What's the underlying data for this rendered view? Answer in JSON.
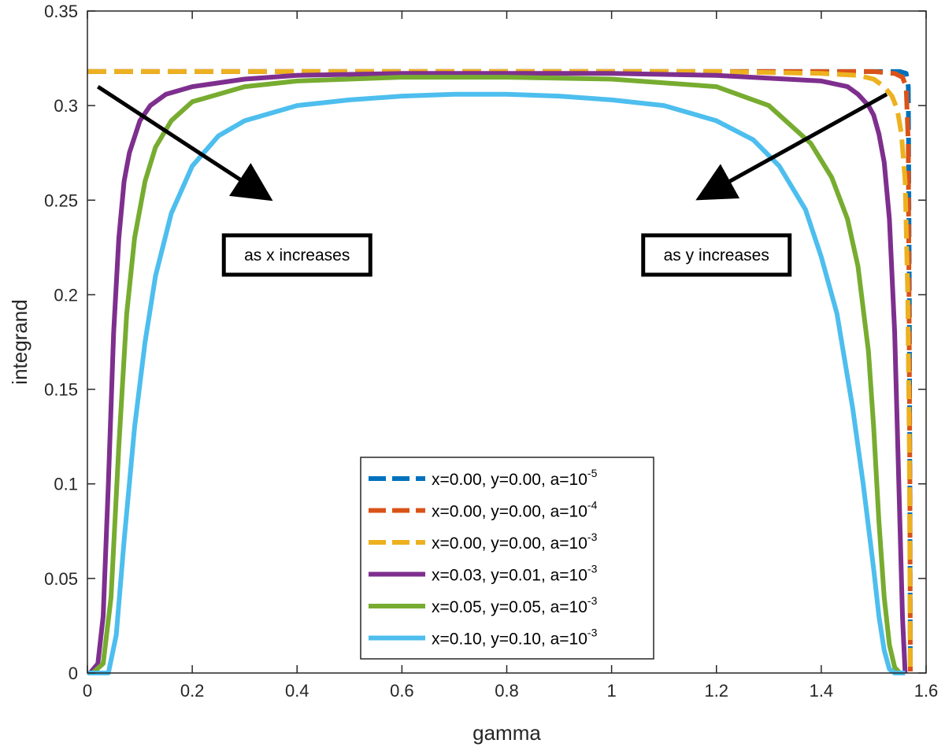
{
  "chart_data": {
    "type": "line",
    "title": "",
    "xlabel": "gamma",
    "ylabel": "integrand",
    "xlim": [
      0,
      1.6
    ],
    "ylim": [
      0,
      0.35
    ],
    "xticks": [
      "0",
      "0.2",
      "0.4",
      "0.6",
      "0.8",
      "1",
      "1.2",
      "1.4",
      "1.6"
    ],
    "yticks": [
      "0",
      "0.05",
      "0.1",
      "0.15",
      "0.2",
      "0.25",
      "0.3",
      "0.35"
    ],
    "grid": false,
    "legend_position": "bottom-center",
    "series": [
      {
        "name": "x=0.00, y=0.00, a=10",
        "exp": "-5",
        "color": "#0072BD",
        "style": "dashed",
        "x": [
          0,
          0.2,
          0.4,
          0.6,
          0.8,
          1.0,
          1.2,
          1.4,
          1.5,
          1.55,
          1.562,
          1.566,
          1.568,
          1.57
        ],
        "y": [
          0.318,
          0.318,
          0.318,
          0.318,
          0.318,
          0.318,
          0.318,
          0.318,
          0.318,
          0.318,
          0.317,
          0.31,
          0.2,
          0
        ]
      },
      {
        "name": "x=0.00, y=0.00, a=10",
        "exp": "-4",
        "color": "#D95319",
        "style": "dashed",
        "x": [
          0,
          0.2,
          0.4,
          0.6,
          0.8,
          1.0,
          1.2,
          1.4,
          1.5,
          1.54,
          1.555,
          1.562,
          1.566,
          1.569,
          1.57
        ],
        "y": [
          0.318,
          0.318,
          0.318,
          0.318,
          0.318,
          0.318,
          0.318,
          0.318,
          0.318,
          0.317,
          0.315,
          0.31,
          0.28,
          0.1,
          0
        ]
      },
      {
        "name": "x=0.00, y=0.00, a=10",
        "exp": "-3",
        "color": "#EDB120",
        "style": "dashed",
        "x": [
          0,
          0.2,
          0.4,
          0.6,
          0.8,
          1.0,
          1.2,
          1.4,
          1.47,
          1.5,
          1.52,
          1.535,
          1.545,
          1.553,
          1.56,
          1.565,
          1.568,
          1.57
        ],
        "y": [
          0.318,
          0.318,
          0.318,
          0.318,
          0.318,
          0.318,
          0.318,
          0.317,
          0.316,
          0.314,
          0.31,
          0.305,
          0.298,
          0.285,
          0.26,
          0.2,
          0.12,
          0
        ]
      },
      {
        "name": "x=0.03, y=0.01, a=10",
        "exp": "-3",
        "color": "#7E2F8E",
        "style": "solid",
        "x": [
          0.005,
          0.02,
          0.03,
          0.04,
          0.05,
          0.06,
          0.07,
          0.08,
          0.1,
          0.12,
          0.15,
          0.2,
          0.3,
          0.4,
          0.6,
          0.8,
          1.0,
          1.2,
          1.4,
          1.45,
          1.47,
          1.49,
          1.5,
          1.51,
          1.52,
          1.53,
          1.54,
          1.55,
          1.555,
          1.56
        ],
        "y": [
          0,
          0.005,
          0.03,
          0.1,
          0.18,
          0.23,
          0.26,
          0.275,
          0.292,
          0.3,
          0.306,
          0.31,
          0.314,
          0.316,
          0.317,
          0.317,
          0.317,
          0.316,
          0.313,
          0.31,
          0.306,
          0.3,
          0.295,
          0.285,
          0.27,
          0.24,
          0.18,
          0.08,
          0.03,
          0
        ]
      },
      {
        "name": "x=0.05, y=0.05, a=10",
        "exp": "-3",
        "color": "#77AC30",
        "style": "solid",
        "x": [
          0.01,
          0.03,
          0.045,
          0.06,
          0.075,
          0.09,
          0.11,
          0.13,
          0.16,
          0.2,
          0.3,
          0.4,
          0.6,
          0.8,
          1.0,
          1.2,
          1.3,
          1.38,
          1.42,
          1.45,
          1.47,
          1.49,
          1.5,
          1.51,
          1.52,
          1.53,
          1.54,
          1.55
        ],
        "y": [
          0,
          0.005,
          0.04,
          0.12,
          0.19,
          0.23,
          0.26,
          0.278,
          0.292,
          0.302,
          0.31,
          0.313,
          0.315,
          0.315,
          0.314,
          0.31,
          0.3,
          0.28,
          0.262,
          0.24,
          0.215,
          0.17,
          0.13,
          0.08,
          0.04,
          0.015,
          0.003,
          0
        ]
      },
      {
        "name": "x=0.10, y=0.10, a=10",
        "exp": "-3",
        "color": "#4DBEEE",
        "style": "solid",
        "x": [
          0,
          0.04,
          0.055,
          0.07,
          0.09,
          0.11,
          0.13,
          0.16,
          0.2,
          0.25,
          0.3,
          0.4,
          0.5,
          0.6,
          0.7,
          0.8,
          0.9,
          1.0,
          1.1,
          1.2,
          1.27,
          1.32,
          1.37,
          1.4,
          1.43,
          1.46,
          1.48,
          1.5,
          1.51,
          1.52,
          1.53,
          1.54,
          1.56
        ],
        "y": [
          0,
          0,
          0.02,
          0.07,
          0.13,
          0.175,
          0.21,
          0.243,
          0.268,
          0.284,
          0.292,
          0.3,
          0.303,
          0.305,
          0.306,
          0.306,
          0.305,
          0.303,
          0.3,
          0.292,
          0.282,
          0.268,
          0.245,
          0.22,
          0.19,
          0.14,
          0.1,
          0.055,
          0.03,
          0.012,
          0.002,
          0,
          0
        ]
      }
    ],
    "annotations": [
      {
        "text": "as x increases",
        "arrow_from": [
          0.02,
          0.31
        ],
        "arrow_to": [
          0.335,
          0.253
        ],
        "box_data_pos": [
          0.4,
          0.221
        ]
      },
      {
        "text": "as y increases",
        "arrow_from": [
          1.525,
          0.306
        ],
        "arrow_to": [
          1.18,
          0.253
        ],
        "box_data_pos": [
          1.2,
          0.221
        ]
      }
    ]
  }
}
